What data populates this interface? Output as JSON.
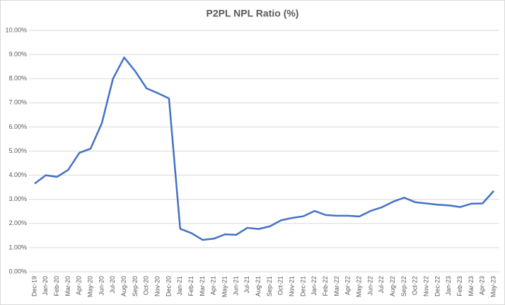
{
  "chart_data": {
    "type": "line",
    "title": "P2PL NPL Ratio (%)",
    "categories": [
      "Dec-19",
      "Jan-20",
      "Feb-20",
      "Mar-20",
      "Apr-20",
      "May-20",
      "Jun-20",
      "Jul-20",
      "Aug-20",
      "Sep-20",
      "Oct-20",
      "Nov-20",
      "Dec-20",
      "Jan-21",
      "Feb-21",
      "Mar-21",
      "Apr-21",
      "May-21",
      "Jun-21",
      "Jul-21",
      "Aug-21",
      "Sep-21",
      "Oct-21",
      "Nov-21",
      "Dec-21",
      "Jan-22",
      "Feb-22",
      "Mar-22",
      "Apr-22",
      "May-22",
      "Jun-22",
      "Jul-22",
      "Aug-22",
      "Sep-22",
      "Oct-22",
      "Nov-22",
      "Dec-22",
      "Jan-23",
      "Feb-23",
      "Mar-23",
      "Apr-23",
      "May-23"
    ],
    "values": [
      3.65,
      4.0,
      3.93,
      4.22,
      4.93,
      5.1,
      6.15,
      8.0,
      8.88,
      8.3,
      7.6,
      7.4,
      7.18,
      1.78,
      1.6,
      1.32,
      1.37,
      1.55,
      1.53,
      1.82,
      1.77,
      1.88,
      2.13,
      2.23,
      2.3,
      2.52,
      2.35,
      2.32,
      2.32,
      2.29,
      2.52,
      2.67,
      2.9,
      3.07,
      2.88,
      2.83,
      2.78,
      2.75,
      2.68,
      2.82,
      2.83,
      3.35
    ],
    "color": "#4472c4",
    "ylim": [
      0,
      10
    ],
    "yticks": [
      {
        "value": 0,
        "label": "0.00%"
      },
      {
        "value": 1,
        "label": "1.00%"
      },
      {
        "value": 2,
        "label": "2.00%"
      },
      {
        "value": 3,
        "label": "3.00%"
      },
      {
        "value": 4,
        "label": "4.00%"
      },
      {
        "value": 5,
        "label": "5.00%"
      },
      {
        "value": 6,
        "label": "6.00%"
      },
      {
        "value": 7,
        "label": "7.00%"
      },
      {
        "value": 8,
        "label": "8.00%"
      },
      {
        "value": 9,
        "label": "9.00%"
      },
      {
        "value": 10,
        "label": "10.00%"
      }
    ],
    "grid": true
  }
}
